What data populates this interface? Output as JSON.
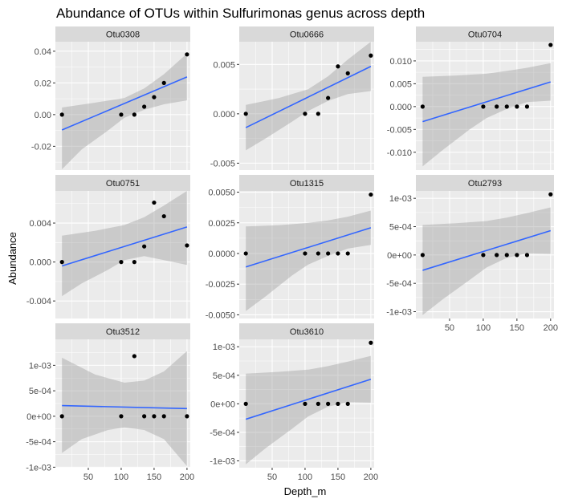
{
  "chart_data": {
    "type": "scatter",
    "title": "Abundance of OTUs within Sulfurimonas genus across depth",
    "xlabel": "Depth_m",
    "ylabel": "Abundance",
    "xlim": [
      0,
      205
    ],
    "x_ticks": [
      50,
      100,
      150,
      200
    ],
    "x_tick_labels": [
      "50",
      "100",
      "150",
      "200"
    ],
    "grid": true,
    "fit": "linear regression with confidence band",
    "colors": {
      "panel_bg": "#ebebeb",
      "strip_bg": "#d9d9d9",
      "grid": "#ffffff",
      "point": "#000000",
      "line": "#3366ff",
      "band": "#999999"
    },
    "panels": [
      {
        "name": "Otu0308",
        "ylim": [
          -0.035,
          0.046
        ],
        "y_ticks": [
          -0.02,
          0,
          0.02,
          0.04
        ],
        "y_tick_labels": [
          "-0.02",
          "0.00",
          "0.02",
          "0.04"
        ],
        "points": [
          [
            10,
            0
          ],
          [
            100,
            0
          ],
          [
            120,
            0
          ],
          [
            135,
            0.005
          ],
          [
            150,
            0.011
          ],
          [
            165,
            0.02
          ],
          [
            200,
            0.038
          ]
        ],
        "fit": {
          "x": [
            10,
            200
          ],
          "y": [
            -0.0097,
            0.0238
          ]
        },
        "band_upper": [
          [
            10,
            0.0045
          ],
          [
            60,
            0.0075
          ],
          [
            105,
            0.0105
          ],
          [
            135,
            0.0165
          ],
          [
            165,
            0.0255
          ],
          [
            200,
            0.0385
          ]
        ],
        "band_lower": [
          [
            10,
            -0.0345
          ],
          [
            40,
            -0.022
          ],
          [
            80,
            -0.01
          ],
          [
            105,
            -0.002
          ],
          [
            135,
            0.003
          ],
          [
            165,
            0.0065
          ],
          [
            200,
            0.009
          ]
        ]
      },
      {
        "name": "Otu0666",
        "ylim": [
          -0.0057,
          0.0073
        ],
        "y_ticks": [
          -0.005,
          0,
          0.005
        ],
        "y_tick_labels": [
          "-0.005",
          "0.000",
          "0.005"
        ],
        "points": [
          [
            10,
            0
          ],
          [
            100,
            0
          ],
          [
            120,
            0
          ],
          [
            135,
            0.0016
          ],
          [
            150,
            0.0048
          ],
          [
            165,
            0.0041
          ],
          [
            200,
            0.0059
          ]
        ],
        "fit": {
          "x": [
            10,
            200
          ],
          "y": [
            -0.0014,
            0.0048
          ]
        },
        "band_upper": [
          [
            10,
            0.0009
          ],
          [
            60,
            0.0016
          ],
          [
            105,
            0.0025
          ],
          [
            135,
            0.0038
          ],
          [
            165,
            0.0055
          ],
          [
            200,
            0.0073
          ]
        ],
        "band_lower": [
          [
            10,
            -0.0037
          ],
          [
            40,
            -0.0025
          ],
          [
            80,
            -0.0008
          ],
          [
            105,
            0.0003
          ],
          [
            135,
            0.0013
          ],
          [
            165,
            0.002
          ],
          [
            200,
            0.0023
          ]
        ]
      },
      {
        "name": "Otu0704",
        "ylim": [
          -0.0139,
          0.0142
        ],
        "y_ticks": [
          -0.01,
          -0.005,
          0,
          0.005,
          0.01
        ],
        "y_tick_labels": [
          "-0.010",
          "-0.005",
          "0.000",
          "0.005",
          "0.010"
        ],
        "points": [
          [
            10,
            0
          ],
          [
            100,
            0
          ],
          [
            120,
            0
          ],
          [
            135,
            0
          ],
          [
            150,
            0
          ],
          [
            165,
            0
          ],
          [
            200,
            0.0135
          ]
        ],
        "fit": {
          "x": [
            10,
            200
          ],
          "y": [
            -0.0033,
            0.0054
          ]
        },
        "band_upper": [
          [
            10,
            0.0065
          ],
          [
            60,
            0.0068
          ],
          [
            105,
            0.0072
          ],
          [
            135,
            0.0078
          ],
          [
            165,
            0.0085
          ],
          [
            200,
            0.0095
          ]
        ],
        "band_lower": [
          [
            10,
            -0.0131
          ],
          [
            40,
            -0.0095
          ],
          [
            80,
            -0.005
          ],
          [
            105,
            -0.0025
          ],
          [
            135,
            -0.0005
          ],
          [
            165,
            0.001
          ],
          [
            200,
            0.0013
          ]
        ]
      },
      {
        "name": "Otu0751",
        "ylim": [
          -0.0058,
          0.0073
        ],
        "y_ticks": [
          -0.004,
          0,
          0.004
        ],
        "y_tick_labels": [
          "-0.004",
          "0.000",
          "0.004"
        ],
        "points": [
          [
            10,
            0
          ],
          [
            100,
            0
          ],
          [
            120,
            0
          ],
          [
            135,
            0.0016
          ],
          [
            150,
            0.0061
          ],
          [
            165,
            0.0047
          ],
          [
            200,
            0.0017
          ]
        ],
        "fit": {
          "x": [
            10,
            200
          ],
          "y": [
            -0.0004,
            0.0036
          ]
        },
        "band_upper": [
          [
            10,
            0.0027
          ],
          [
            60,
            0.0032
          ],
          [
            105,
            0.0038
          ],
          [
            135,
            0.0046
          ],
          [
            165,
            0.0058
          ],
          [
            200,
            0.0073
          ]
        ],
        "band_lower": [
          [
            10,
            -0.0035
          ],
          [
            40,
            -0.0022
          ],
          [
            80,
            -0.0008
          ],
          [
            105,
            0.0002
          ],
          [
            135,
            0.0006
          ],
          [
            165,
            0.0002
          ],
          [
            200,
            -0.0003
          ]
        ]
      },
      {
        "name": "Otu1315",
        "ylim": [
          -0.0053,
          0.0051
        ],
        "y_ticks": [
          -0.005,
          -0.0025,
          0,
          0.0025,
          0.005
        ],
        "y_tick_labels": [
          "-0.0050",
          "-0.0025",
          "0.0000",
          "0.0025",
          "0.0050"
        ],
        "points": [
          [
            10,
            0
          ],
          [
            100,
            0
          ],
          [
            120,
            0
          ],
          [
            135,
            0
          ],
          [
            150,
            0
          ],
          [
            165,
            0
          ],
          [
            200,
            0.0048
          ]
        ],
        "fit": {
          "x": [
            10,
            200
          ],
          "y": [
            -0.0011,
            0.0021
          ]
        },
        "band_upper": [
          [
            10,
            0.0022
          ],
          [
            60,
            0.0023
          ],
          [
            105,
            0.0025
          ],
          [
            135,
            0.0027
          ],
          [
            165,
            0.003
          ],
          [
            200,
            0.0035
          ]
        ],
        "band_lower": [
          [
            10,
            -0.0047
          ],
          [
            40,
            -0.0035
          ],
          [
            80,
            -0.0018
          ],
          [
            105,
            -0.0009
          ],
          [
            135,
            -0.0002
          ],
          [
            165,
            0.0004
          ],
          [
            200,
            0.0007
          ]
        ]
      },
      {
        "name": "Otu2793",
        "ylim": [
          -0.00112,
          0.00113
        ],
        "y_ticks": [
          -0.001,
          -0.0005,
          0,
          0.0005,
          0.001
        ],
        "y_tick_labels": [
          "-1e-03",
          "-5e-04",
          "0e+00",
          "5e-04",
          "1e-03"
        ],
        "points": [
          [
            10,
            0
          ],
          [
            100,
            0
          ],
          [
            120,
            0
          ],
          [
            135,
            0
          ],
          [
            150,
            0
          ],
          [
            165,
            0
          ],
          [
            200,
            0.00107
          ]
        ],
        "fit": {
          "x": [
            10,
            200
          ],
          "y": [
            -0.00027,
            0.00043
          ]
        },
        "band_upper": [
          [
            10,
            0.00053
          ],
          [
            60,
            0.00056
          ],
          [
            105,
            0.0006
          ],
          [
            135,
            0.00066
          ],
          [
            165,
            0.00074
          ],
          [
            200,
            0.00084
          ]
        ],
        "band_lower": [
          [
            10,
            -0.00106
          ],
          [
            40,
            -0.00078
          ],
          [
            80,
            -0.00044
          ],
          [
            105,
            -0.00022
          ],
          [
            135,
            -5e-05
          ],
          [
            165,
            3e-05
          ],
          [
            200,
            2e-05
          ]
        ]
      },
      {
        "name": "Otu3512",
        "ylim": [
          -0.00101,
          0.00151
        ],
        "y_ticks": [
          -0.001,
          -0.0005,
          0,
          0.0005,
          0.001
        ],
        "y_tick_labels": [
          "-1e-03",
          "-5e-04",
          "0e+00",
          "5e-04",
          "1e-03"
        ],
        "points": [
          [
            10,
            0
          ],
          [
            100,
            0
          ],
          [
            120,
            0.00118
          ],
          [
            135,
            0
          ],
          [
            150,
            0
          ],
          [
            165,
            0
          ],
          [
            200,
            0
          ]
        ],
        "fit": {
          "x": [
            10,
            200
          ],
          "y": [
            0.00021,
            0.00015
          ]
        },
        "band_upper": [
          [
            10,
            0.00115
          ],
          [
            60,
            0.00082
          ],
          [
            105,
            0.00066
          ],
          [
            135,
            0.0007
          ],
          [
            165,
            0.00088
          ],
          [
            200,
            0.00128
          ]
        ],
        "band_lower": [
          [
            10,
            -0.00072
          ],
          [
            40,
            -0.00045
          ],
          [
            80,
            -0.00027
          ],
          [
            105,
            -0.00022
          ],
          [
            135,
            -0.00027
          ],
          [
            165,
            -0.00045
          ],
          [
            200,
            -0.00098
          ]
        ]
      },
      {
        "name": "Otu3610",
        "ylim": [
          -0.00112,
          0.00113
        ],
        "y_ticks": [
          -0.001,
          -0.0005,
          0,
          0.0005,
          0.001
        ],
        "y_tick_labels": [
          "-1e-03",
          "-5e-04",
          "0e+00",
          "5e-04",
          "1e-03"
        ],
        "points": [
          [
            10,
            0
          ],
          [
            100,
            0
          ],
          [
            120,
            0
          ],
          [
            135,
            0
          ],
          [
            150,
            0
          ],
          [
            165,
            0
          ],
          [
            200,
            0.00107
          ]
        ],
        "fit": {
          "x": [
            10,
            200
          ],
          "y": [
            -0.00027,
            0.00043
          ]
        },
        "band_upper": [
          [
            10,
            0.00053
          ],
          [
            60,
            0.00056
          ],
          [
            105,
            0.0006
          ],
          [
            135,
            0.00066
          ],
          [
            165,
            0.00074
          ],
          [
            200,
            0.00084
          ]
        ],
        "band_lower": [
          [
            10,
            -0.00106
          ],
          [
            40,
            -0.00078
          ],
          [
            80,
            -0.00044
          ],
          [
            105,
            -0.00022
          ],
          [
            135,
            -5e-05
          ],
          [
            165,
            3e-05
          ],
          [
            200,
            2e-05
          ]
        ]
      }
    ]
  }
}
